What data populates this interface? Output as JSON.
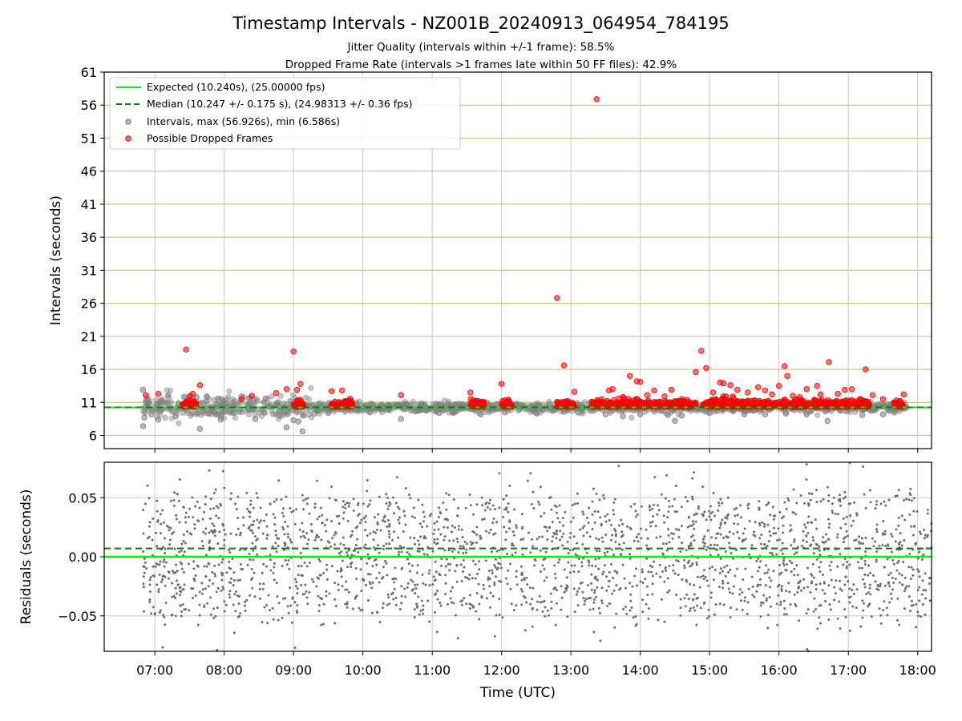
{
  "chart_data": [
    {
      "type": "scatter",
      "title": "Timestamp Intervals - NZ001B_20240913_064954_784195",
      "subtitle_1": "Jitter Quality (intervals within +/-1 frame): 58.5%",
      "subtitle_2": "Dropped Frame Rate (intervals >1 frames late within 50 FF files): 42.9%",
      "ylabel": "Intervals (seconds)",
      "ylim": [
        4,
        61
      ],
      "yticks": [
        "6",
        "11",
        "16",
        "21",
        "26",
        "31",
        "36",
        "41",
        "46",
        "51",
        "56",
        "61"
      ],
      "xlim_hours": [
        6.27,
        18.2
      ],
      "grid": true,
      "legend_position": "upper left",
      "legend": [
        "Expected (10.240s), (25.00000 fps)",
        "Median (10.247 +/- 0.175 s), (24.98313 +/- 0.36 fps)",
        "Intervals, max (56.926s), min (6.586s)",
        "Possible Dropped Frames"
      ],
      "expected_line": 10.24,
      "median_line": 10.247,
      "series": [
        {
          "name": "Intervals, max (56.926s), min (6.586s)",
          "color": "#808080",
          "points": [
            [
              6.83,
              12.9
            ],
            [
              6.83,
              7.4
            ],
            [
              6.85,
              8.7
            ],
            [
              6.9,
              10.8
            ],
            [
              6.95,
              9.2
            ],
            [
              7.05,
              8.4
            ],
            [
              7.15,
              11.0
            ],
            [
              7.3,
              8.9
            ],
            [
              7.6,
              11.8
            ],
            [
              7.65,
              7.0
            ],
            [
              7.75,
              11.9
            ],
            [
              7.85,
              9.6
            ],
            [
              7.95,
              8.4
            ],
            [
              8.25,
              11.9
            ],
            [
              8.45,
              8.5
            ],
            [
              8.6,
              11.6
            ],
            [
              8.8,
              9.7
            ],
            [
              8.9,
              7.2
            ],
            [
              9.0,
              8.3
            ],
            [
              9.07,
              8.1
            ],
            [
              9.13,
              6.6
            ],
            [
              9.3,
              9.3
            ],
            [
              9.5,
              9.4
            ],
            [
              10.1,
              9.5
            ],
            [
              10.55,
              8.5
            ],
            [
              11.1,
              9.4
            ],
            [
              11.3,
              9.5
            ],
            [
              11.7,
              9.2
            ],
            [
              12.05,
              9.5
            ],
            [
              12.5,
              9.4
            ],
            [
              12.9,
              9.6
            ],
            [
              13.1,
              9.5
            ],
            [
              13.5,
              9.2
            ],
            [
              13.75,
              8.9
            ],
            [
              14.0,
              9.2
            ],
            [
              14.4,
              9.1
            ],
            [
              14.5,
              8.2
            ],
            [
              14.6,
              9.0
            ],
            [
              15.0,
              9.4
            ],
            [
              15.5,
              9.2
            ],
            [
              15.8,
              9.2
            ],
            [
              16.1,
              9.3
            ],
            [
              16.4,
              9.2
            ],
            [
              16.7,
              8.2
            ],
            [
              17.2,
              9.1
            ],
            [
              17.5,
              9.2
            ]
          ]
        },
        {
          "name": "Possible Dropped Frames",
          "color": "#ff0000",
          "points": [
            [
              6.87,
              12.1
            ],
            [
              7.05,
              12.3
            ],
            [
              7.45,
              19.0
            ],
            [
              7.5,
              11.9
            ],
            [
              7.55,
              12.3
            ],
            [
              7.65,
              13.6
            ],
            [
              8.25,
              11.5
            ],
            [
              8.4,
              12.0
            ],
            [
              8.75,
              12.4
            ],
            [
              8.9,
              13.0
            ],
            [
              9.0,
              18.7
            ],
            [
              9.05,
              12.9
            ],
            [
              9.1,
              13.8
            ],
            [
              9.55,
              12.7
            ],
            [
              9.7,
              12.8
            ],
            [
              9.8,
              11.2
            ],
            [
              10.55,
              12.1
            ],
            [
              11.55,
              12.5
            ],
            [
              11.65,
              11.0
            ],
            [
              12.0,
              13.8
            ],
            [
              12.1,
              11.4
            ],
            [
              12.8,
              26.8
            ],
            [
              12.9,
              16.6
            ],
            [
              12.95,
              11.2
            ],
            [
              13.05,
              12.6
            ],
            [
              13.37,
              56.9
            ],
            [
              13.3,
              11.1
            ],
            [
              13.55,
              12.8
            ],
            [
              13.6,
              13.0
            ],
            [
              13.75,
              11.8
            ],
            [
              13.85,
              15.0
            ],
            [
              13.95,
              14.2
            ],
            [
              14.0,
              14.1
            ],
            [
              14.1,
              12.1
            ],
            [
              14.2,
              12.8
            ],
            [
              14.35,
              11.9
            ],
            [
              14.45,
              12.9
            ],
            [
              14.6,
              11.5
            ],
            [
              14.8,
              15.6
            ],
            [
              14.88,
              18.8
            ],
            [
              14.95,
              16.2
            ],
            [
              15.05,
              12.5
            ],
            [
              15.15,
              14.0
            ],
            [
              15.2,
              13.9
            ],
            [
              15.3,
              13.6
            ],
            [
              15.4,
              12.9
            ],
            [
              15.55,
              12.5
            ],
            [
              15.7,
              13.3
            ],
            [
              15.8,
              12.8
            ],
            [
              15.9,
              12.2
            ],
            [
              16.0,
              13.5
            ],
            [
              16.08,
              16.5
            ],
            [
              16.12,
              15.0
            ],
            [
              16.2,
              12.0
            ],
            [
              16.3,
              11.8
            ],
            [
              16.4,
              13.0
            ],
            [
              16.55,
              13.5
            ],
            [
              16.6,
              12.2
            ],
            [
              16.72,
              17.1
            ],
            [
              16.85,
              12.3
            ],
            [
              16.95,
              12.9
            ],
            [
              17.05,
              13.0
            ],
            [
              17.15,
              11.2
            ],
            [
              17.25,
              16.0
            ],
            [
              17.35,
              12.1
            ],
            [
              17.5,
              11.5
            ],
            [
              17.8,
              12.2
            ]
          ],
          "clusters": [
            [
              7.4,
              7.6
            ],
            [
              9.0,
              9.15
            ],
            [
              9.55,
              9.85
            ],
            [
              11.55,
              11.75
            ],
            [
              12.0,
              12.15
            ],
            [
              12.8,
              13.05
            ],
            [
              13.3,
              14.8
            ],
            [
              14.9,
              17.3
            ],
            [
              17.65,
              17.8
            ]
          ]
        }
      ]
    },
    {
      "type": "scatter",
      "xlabel": "Time (UTC)",
      "ylabel": "Residuals (seconds)",
      "ylim": [
        -0.08,
        0.08
      ],
      "yticks": [
        "−0.05",
        "0.00",
        "0.05"
      ],
      "xticks": [
        "07:00",
        "08:00",
        "09:00",
        "10:00",
        "11:00",
        "12:00",
        "13:00",
        "14:00",
        "15:00",
        "16:00",
        "17:00",
        "18:00"
      ],
      "xlim_hours": [
        6.27,
        18.2
      ],
      "grid": true,
      "expected_line": 0.0,
      "median_line": 0.007,
      "series": [
        {
          "name": "Residuals",
          "color": "#6e6e6e",
          "range_hours": [
            6.83,
            18.2
          ],
          "typical_spread": 0.05
        }
      ]
    }
  ],
  "colors": {
    "expected": "#00ee00",
    "median": "#008000",
    "intervals": "#808080",
    "dropped": "#ff0000",
    "hgrid_top": "#d4c27f",
    "grid": "#c8c8c8"
  }
}
